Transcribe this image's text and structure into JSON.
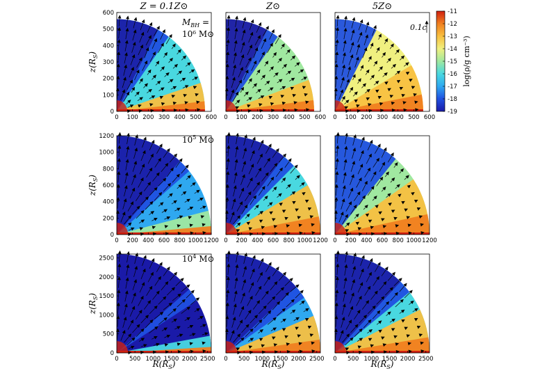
{
  "chart_data": {
    "type": "heatmap",
    "description_free": true,
    "column_titles": [
      "Z = 0.1Z⊙",
      "Z⊙",
      "5Z⊙"
    ],
    "row_labels": [
      "M",
      "10⁵ M⊙",
      "10⁴ M⊙"
    ],
    "row_label_first": {
      "line1": "M",
      "line1_sub": "BH",
      "line1_tail": " =",
      "line2": "10⁶ M⊙"
    },
    "row_label_rest": [
      {
        "base": "10",
        "exp": "5",
        "tail": " M⊙"
      },
      {
        "base": "10",
        "exp": "4",
        "tail": " M⊙"
      }
    ],
    "xlabel": {
      "main": "R(R",
      "sub": "S",
      "tail": ")"
    },
    "ylabel": {
      "main": "z(R",
      "sub": "S",
      "tail": ")"
    },
    "arrow_scale_label": "0.1c",
    "colorbar": {
      "label": "log(ρ/g cm⁻³)",
      "range": [
        -19,
        -11
      ],
      "ticks": [
        "-11",
        "-12",
        "-13",
        "-14",
        "-15",
        "-16",
        "-17",
        "-18",
        "-19"
      ],
      "colors": [
        "#1a1aa8",
        "#2050e0",
        "#2fa8f0",
        "#49d8e0",
        "#a0e8a0",
        "#f0f080",
        "#f8c040",
        "#f08020",
        "#d02010"
      ]
    },
    "rows": [
      {
        "xlim": [
          0,
          600
        ],
        "ylim": [
          0,
          600
        ],
        "xticks": [
          "0",
          "100",
          "200",
          "300",
          "400",
          "500",
          "600"
        ],
        "yticks": [
          "0",
          "100",
          "200",
          "300",
          "400",
          "500",
          "600"
        ],
        "radius": 560
      },
      {
        "xlim": [
          0,
          1200
        ],
        "ylim": [
          0,
          1200
        ],
        "xticks": [
          "0",
          "200",
          "400",
          "600",
          "800",
          "1000",
          "1200"
        ],
        "yticks": [
          "0",
          "200",
          "400",
          "600",
          "800",
          "1000",
          "1200"
        ],
        "radius": 1200
      },
      {
        "xlim": [
          0,
          2600
        ],
        "ylim": [
          0,
          2600
        ],
        "xticks": [
          "0",
          "500",
          "1000",
          "1500",
          "2000",
          "2500"
        ],
        "yticks": [
          "0",
          "500",
          "1000",
          "1500",
          "2000",
          "2500"
        ],
        "radius": 2600
      }
    ],
    "panels": [
      {
        "row": 0,
        "col": 0,
        "jet_color": "#1a1aa8",
        "wind_color": "#49d8e0",
        "disk_color": "#f8c040",
        "jet_angle": 62,
        "disk_angle": 18
      },
      {
        "row": 0,
        "col": 1,
        "jet_color": "#1a1aa8",
        "wind_color": "#a0e8a0",
        "disk_color": "#f8c040",
        "jet_angle": 62,
        "disk_angle": 20
      },
      {
        "row": 0,
        "col": 2,
        "jet_color": "#2050e0",
        "wind_color": "#f0f080",
        "disk_color": "#f8c040",
        "jet_angle": 70,
        "disk_angle": 30
      },
      {
        "row": 1,
        "col": 0,
        "jet_color": "#1a1aa8",
        "wind_color": "#2fa8f0",
        "disk_color": "#a0e8a0",
        "jet_angle": 48,
        "disk_angle": 14
      },
      {
        "row": 1,
        "col": 1,
        "jet_color": "#1a1aa8",
        "wind_color": "#49d8e0",
        "disk_color": "#f8c040",
        "jet_angle": 52,
        "disk_angle": 30
      },
      {
        "row": 1,
        "col": 2,
        "jet_color": "#2050e0",
        "wind_color": "#a0e8a0",
        "disk_color": "#f8c040",
        "jet_angle": 58,
        "disk_angle": 34
      },
      {
        "row": 2,
        "col": 0,
        "jet_color": "#1a1aa8",
        "wind_color": "#1a1aa8",
        "disk_color": "#49d8e0",
        "jet_angle": 40,
        "disk_angle": 10
      },
      {
        "row": 2,
        "col": 1,
        "jet_color": "#1a1aa8",
        "wind_color": "#2fa8f0",
        "disk_color": "#f8c040",
        "jet_angle": 42,
        "disk_angle": 22
      },
      {
        "row": 2,
        "col": 2,
        "jet_color": "#1a1aa8",
        "wind_color": "#49d8e0",
        "disk_color": "#f8c040",
        "jet_angle": 46,
        "disk_angle": 26
      }
    ]
  }
}
